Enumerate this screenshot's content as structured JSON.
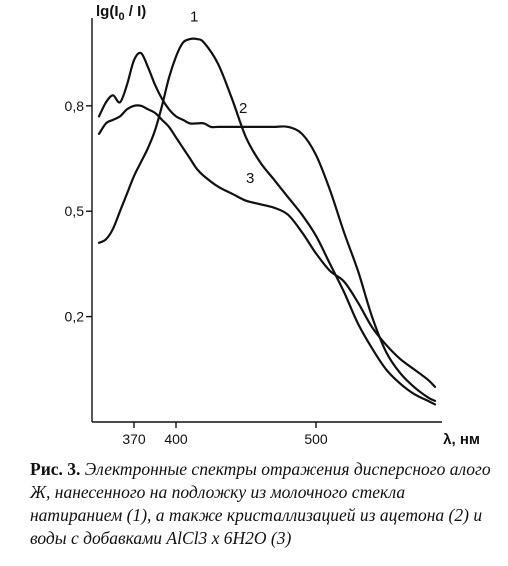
{
  "chart_data": {
    "type": "line",
    "ylabel": "lg(I0 / I)",
    "xlabel": "λ, нм",
    "x_ticks": [
      370,
      400,
      500
    ],
    "y_ticks": [
      0.2,
      0.5,
      0.8
    ],
    "x_tick_labels": [
      "370",
      "400",
      "500"
    ],
    "y_tick_labels": [
      "0,2",
      "0,5",
      "0,8"
    ],
    "xlim": [
      340,
      590
    ],
    "ylim": [
      -0.1,
      1.05
    ],
    "grid": false,
    "series": [
      {
        "name": "1",
        "x": [
          345,
          350,
          355,
          360,
          365,
          370,
          375,
          380,
          385,
          390,
          395,
          400,
          405,
          410,
          415,
          420,
          430,
          440,
          450,
          460,
          470,
          480,
          490,
          500,
          510,
          520,
          530,
          540,
          550,
          560,
          570,
          580,
          585
        ],
        "y": [
          0.41,
          0.42,
          0.45,
          0.5,
          0.55,
          0.6,
          0.64,
          0.68,
          0.73,
          0.8,
          0.88,
          0.94,
          0.98,
          0.99,
          0.99,
          0.98,
          0.92,
          0.82,
          0.71,
          0.64,
          0.59,
          0.54,
          0.49,
          0.43,
          0.35,
          0.27,
          0.18,
          0.11,
          0.05,
          0.01,
          -0.02,
          -0.04,
          -0.05
        ]
      },
      {
        "name": "2",
        "x": [
          345,
          350,
          355,
          360,
          365,
          370,
          375,
          380,
          385,
          390,
          395,
          400,
          405,
          410,
          415,
          420,
          425,
          430,
          440,
          450,
          460,
          470,
          480,
          490,
          500,
          510,
          520,
          530,
          540,
          550,
          560,
          570,
          580,
          585
        ],
        "y": [
          0.77,
          0.81,
          0.83,
          0.81,
          0.86,
          0.93,
          0.95,
          0.91,
          0.86,
          0.82,
          0.79,
          0.77,
          0.76,
          0.75,
          0.75,
          0.75,
          0.74,
          0.74,
          0.74,
          0.74,
          0.74,
          0.74,
          0.74,
          0.72,
          0.66,
          0.56,
          0.44,
          0.33,
          0.2,
          0.1,
          0.04,
          0.0,
          -0.03,
          -0.04
        ]
      },
      {
        "name": "3",
        "x": [
          345,
          350,
          355,
          360,
          365,
          370,
          375,
          380,
          385,
          390,
          395,
          400,
          405,
          410,
          415,
          420,
          430,
          440,
          450,
          460,
          470,
          480,
          490,
          500,
          510,
          520,
          530,
          540,
          550,
          560,
          570,
          580,
          585
        ],
        "y": [
          0.72,
          0.75,
          0.76,
          0.77,
          0.79,
          0.8,
          0.8,
          0.79,
          0.78,
          0.76,
          0.74,
          0.71,
          0.68,
          0.65,
          0.62,
          0.6,
          0.57,
          0.55,
          0.53,
          0.52,
          0.51,
          0.49,
          0.44,
          0.38,
          0.33,
          0.3,
          0.24,
          0.17,
          0.12,
          0.08,
          0.05,
          0.02,
          0.0
        ]
      }
    ]
  },
  "caption": {
    "label": "Рис. 3.",
    "text": "Электронные спектры отражения дисперсного алого Ж, нанесенного на подложку из молочного стекла натиранием (1), а также кристаллизацией из ацетона (2) и воды с добавками AlCl3 x 6H2O (3)"
  }
}
